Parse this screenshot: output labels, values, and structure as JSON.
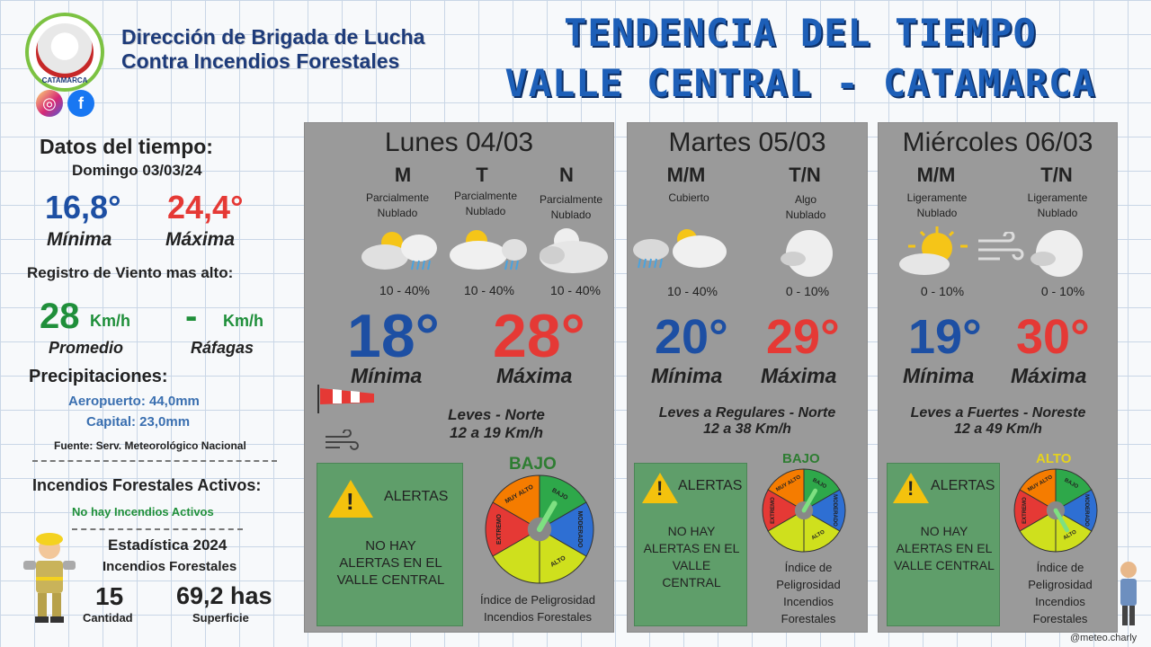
{
  "header": {
    "org_line1": "Dirección de Brigada de Lucha",
    "org_line2": "Contra Incendios Forestales",
    "title_line1": "TENDENCIA DEL TIEMPO",
    "title_line2": "VALLE CENTRAL - CATAMARCA",
    "logo_text": "CATAMARCA",
    "social": [
      {
        "icon": "instagram-icon"
      },
      {
        "icon": "facebook-icon",
        "glyph": "f"
      }
    ]
  },
  "left": {
    "datos_title": "Datos del tiempo:",
    "datos_date": "Domingo 03/03/24",
    "min_value": "16,8°",
    "min_label": "Mínima",
    "max_value": "24,4°",
    "max_label": "Máxima",
    "viento_title": "Registro de Viento mas alto:",
    "promedio_value": "28",
    "promedio_unit": "Km/h",
    "promedio_label": "Promedio",
    "rafagas_value": "-",
    "rafagas_unit": "Km/h",
    "rafagas_label": "Ráfagas",
    "precip_title": "Precipitaciones:",
    "aeropuerto": "Aeropuerto: 44,0mm",
    "capital": "Capital: 23,0mm",
    "fuente": "Fuente: Serv. Meteorológico Nacional",
    "incendios_title": "Incendios Forestales Activos:",
    "incendios_status": "No hay Incendios Activos",
    "stats_title": "Estadística 2024",
    "stats_sub": "Incendios Forestales",
    "cantidad_value": "15",
    "cantidad_label": "Cantidad",
    "superficie_value": "69,2 has",
    "superficie_label": "Superficie"
  },
  "days": [
    {
      "title": "Lunes 04/03",
      "slots": [
        {
          "label": "M",
          "cond1": "Parcialmente",
          "cond2": "Nublado",
          "pct": "10 - 40%"
        },
        {
          "label": "T",
          "cond1": "Parcialmente",
          "cond2": "Nublado",
          "pct": "10 - 40%"
        },
        {
          "label": "N",
          "cond1": "Parcialmente",
          "cond2": "Nublado",
          "pct": "10 - 40%"
        }
      ],
      "min": "18°",
      "max": "28°",
      "min_label": "Mínima",
      "max_label": "Máxima",
      "wind1": "Leves - Norte",
      "wind2": "12 a 19 Km/h",
      "alert_title": "ALERTAS",
      "alert_l1": "NO HAY",
      "alert_l2": "ALERTAS EN EL",
      "alert_l3": "VALLE CENTRAL",
      "risk": "BAJO",
      "idx1": "Índice de Peligrosidad",
      "idx2": "Incendios Forestales"
    },
    {
      "title": "Martes 05/03",
      "slots": [
        {
          "label": "M/M",
          "cond1": "Cubierto",
          "cond2": "",
          "pct": "10 - 40%"
        },
        {
          "label": "T/N",
          "cond1": "Algo",
          "cond2": "Nublado",
          "pct": "0 - 10%"
        }
      ],
      "min": "20°",
      "max": "29°",
      "min_label": "Mínima",
      "max_label": "Máxima",
      "wind1": "Leves a Regulares - Norte",
      "wind2": "12 a 38 Km/h",
      "alert_title": "ALERTAS",
      "alert_l1": "NO HAY",
      "alert_l2": "ALERTAS EN EL",
      "alert_l3": "VALLE",
      "alert_l4": "CENTRAL",
      "risk": "BAJO",
      "idx1": "Índice de",
      "idx2": "Peligrosidad",
      "idx3": "Incendios",
      "idx4": "Forestales"
    },
    {
      "title": "Miércoles 06/03",
      "slots": [
        {
          "label": "M/M",
          "cond1": "Ligeramente",
          "cond2": "Nublado",
          "pct": "0 - 10%"
        },
        {
          "label": "T/N",
          "cond1": "Ligeramente",
          "cond2": "Nublado",
          "pct": "0 - 10%"
        }
      ],
      "min": "19°",
      "max": "30°",
      "min_label": "Mínima",
      "max_label": "Máxima",
      "wind1": "Leves a Fuertes - Noreste",
      "wind2": "12 a 49 Km/h",
      "alert_title": "ALERTAS",
      "alert_l1": "NO HAY",
      "alert_l2": "ALERTAS EN EL",
      "alert_l3": "VALLE CENTRAL",
      "risk": "ALTO",
      "idx1": "Índice de",
      "idx2": "Peligrosidad",
      "idx3": "Incendios",
      "idx4": "Forestales"
    }
  ],
  "gauge_labels": {
    "extremo": "EXTREMO",
    "muy_alto": "MUY ALTO",
    "bajo": "BAJO",
    "moderado": "MODERADO",
    "alto": "ALTO"
  },
  "credit": "@meteo.charly",
  "colors": {
    "title": "#1d5fb8",
    "min": "#1d4fa3",
    "max": "#e53935",
    "panel": "#9a9a9a",
    "alert_box": "#5f9e6a",
    "warning": "#f4c20d"
  }
}
